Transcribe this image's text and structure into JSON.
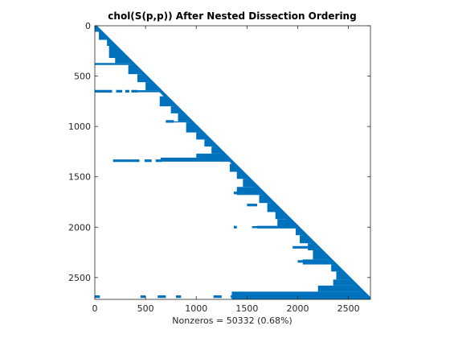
{
  "chart_data": {
    "type": "scatter",
    "title": "chol(S(p,p)) After Nested Dissection Ordering",
    "xlabel": "Nonzeros = 50332 (0.68%)",
    "ylabel": "",
    "matrix_size": 2717,
    "xlim": [
      0,
      2717
    ],
    "ylim": [
      0,
      2717
    ],
    "y_reversed": true,
    "grid": false,
    "x_ticks": [
      0,
      500,
      1000,
      1500,
      2000,
      2500
    ],
    "y_ticks": [
      0,
      500,
      1000,
      1500,
      2000,
      2500
    ],
    "x_tick_labels": [
      "0",
      "500",
      "1000",
      "1500",
      "2000",
      "2500"
    ],
    "y_tick_labels": [
      "0",
      "500",
      "1000",
      "1500",
      "2000",
      "2500"
    ],
    "marker_color": "#0072BD",
    "diagonal": [
      [
        0,
        0
      ],
      [
        2717,
        2717
      ]
    ],
    "blocks": [
      {
        "rows": [
          0,
          60
        ],
        "cols": [
          0,
          60
        ]
      },
      {
        "rows": [
          60,
          140
        ],
        "cols": [
          40,
          140
        ]
      },
      {
        "rows": [
          140,
          200
        ],
        "cols": [
          120,
          200
        ]
      },
      {
        "rows": [
          200,
          320
        ],
        "cols": [
          140,
          320
        ]
      },
      {
        "rows": [
          320,
          370
        ],
        "cols": [
          200,
          370
        ]
      },
      {
        "rows": [
          370,
          390
        ],
        "cols": [
          0,
          390
        ]
      },
      {
        "rows": [
          390,
          480
        ],
        "cols": [
          330,
          480
        ]
      },
      {
        "rows": [
          480,
          560
        ],
        "cols": [
          420,
          560
        ]
      },
      {
        "rows": [
          560,
          640
        ],
        "cols": [
          500,
          640
        ]
      },
      {
        "rows": [
          640,
          660
        ],
        "cols": [
          400,
          660
        ]
      },
      {
        "rows": [
          700,
          800
        ],
        "cols": [
          640,
          800
        ]
      },
      {
        "rows": [
          800,
          870
        ],
        "cols": [
          750,
          870
        ]
      },
      {
        "rows": [
          870,
          950
        ],
        "cols": [
          820,
          950
        ]
      },
      {
        "rows": [
          950,
          960
        ],
        "cols": [
          700,
          960
        ]
      },
      {
        "rows": [
          960,
          1060
        ],
        "cols": [
          900,
          1060
        ]
      },
      {
        "rows": [
          1060,
          1130
        ],
        "cols": [
          1000,
          1130
        ]
      },
      {
        "rows": [
          1130,
          1200
        ],
        "cols": [
          1080,
          1200
        ]
      },
      {
        "rows": [
          1200,
          1270
        ],
        "cols": [
          1150,
          1270
        ]
      },
      {
        "rows": [
          1270,
          1310
        ],
        "cols": [
          1000,
          1310
        ]
      },
      {
        "rows": [
          1310,
          1350
        ],
        "cols": [
          650,
          1350
        ]
      },
      {
        "rows": [
          1370,
          1450
        ],
        "cols": [
          1330,
          1450
        ]
      },
      {
        "rows": [
          1450,
          1520
        ],
        "cols": [
          1400,
          1520
        ]
      },
      {
        "rows": [
          1520,
          1600
        ],
        "cols": [
          1460,
          1600
        ]
      },
      {
        "rows": [
          1600,
          1680
        ],
        "cols": [
          1400,
          1680
        ]
      },
      {
        "rows": [
          1680,
          1760
        ],
        "cols": [
          1620,
          1760
        ]
      },
      {
        "rows": [
          1760,
          1850
        ],
        "cols": [
          1700,
          1850
        ]
      },
      {
        "rows": [
          1850,
          1920
        ],
        "cols": [
          1780,
          1920
        ]
      },
      {
        "rows": [
          1920,
          1990
        ],
        "cols": [
          1800,
          1990
        ]
      },
      {
        "rows": [
          1990,
          2010
        ],
        "cols": [
          1550,
          2010
        ]
      },
      {
        "rows": [
          2010,
          2080
        ],
        "cols": [
          1980,
          2080
        ]
      },
      {
        "rows": [
          2080,
          2160
        ],
        "cols": [
          2020,
          2160
        ]
      },
      {
        "rows": [
          2160,
          2230
        ],
        "cols": [
          2100,
          2230
        ]
      },
      {
        "rows": [
          2230,
          2320
        ],
        "cols": [
          2150,
          2320
        ]
      },
      {
        "rows": [
          2320,
          2370
        ],
        "cols": [
          2050,
          2370
        ]
      },
      {
        "rows": [
          2370,
          2440
        ],
        "cols": [
          2330,
          2440
        ]
      },
      {
        "rows": [
          2440,
          2520
        ],
        "cols": [
          2380,
          2520
        ]
      },
      {
        "rows": [
          2520,
          2580
        ],
        "cols": [
          2350,
          2580
        ]
      },
      {
        "rows": [
          2580,
          2640
        ],
        "cols": [
          2200,
          2640
        ]
      },
      {
        "rows": [
          2640,
          2717
        ],
        "cols": [
          1350,
          2717
        ]
      }
    ],
    "row_segments": [
      {
        "row": 650,
        "x": [
          0,
          170
        ]
      },
      {
        "row": 650,
        "x": [
          210,
          270
        ]
      },
      {
        "row": 650,
        "x": [
          300,
          340
        ]
      },
      {
        "row": 650,
        "x": [
          360,
          420
        ]
      },
      {
        "row": 950,
        "x": [
          700,
          780
        ]
      },
      {
        "row": 1340,
        "x": [
          180,
          440
        ]
      },
      {
        "row": 1340,
        "x": [
          490,
          560
        ]
      },
      {
        "row": 1340,
        "x": [
          600,
          660
        ]
      },
      {
        "row": 1330,
        "x": [
          790,
          1000
        ]
      },
      {
        "row": 1320,
        "x": [
          1010,
          1300
        ]
      },
      {
        "row": 1660,
        "x": [
          1370,
          1560
        ]
      },
      {
        "row": 1780,
        "x": [
          1500,
          1600
        ]
      },
      {
        "row": 2000,
        "x": [
          1370,
          1400
        ]
      },
      {
        "row": 2000,
        "x": [
          1600,
          1980
        ]
      },
      {
        "row": 2200,
        "x": [
          1950,
          2150
        ]
      },
      {
        "row": 2340,
        "x": [
          2000,
          2180
        ]
      },
      {
        "row": 2690,
        "x": [
          0,
          50
        ]
      },
      {
        "row": 2690,
        "x": [
          450,
          500
        ]
      },
      {
        "row": 2690,
        "x": [
          620,
          700
        ]
      },
      {
        "row": 2690,
        "x": [
          800,
          850
        ]
      },
      {
        "row": 2690,
        "x": [
          1170,
          1250
        ]
      },
      {
        "row": 2690,
        "x": [
          1340,
          1420
        ]
      },
      {
        "row": 2690,
        "x": [
          1530,
          1600
        ]
      },
      {
        "row": 2690,
        "x": [
          1850,
          2000
        ]
      },
      {
        "row": 2690,
        "x": [
          2080,
          2200
        ]
      },
      {
        "row": 2690,
        "x": [
          2280,
          2480
        ]
      }
    ]
  }
}
